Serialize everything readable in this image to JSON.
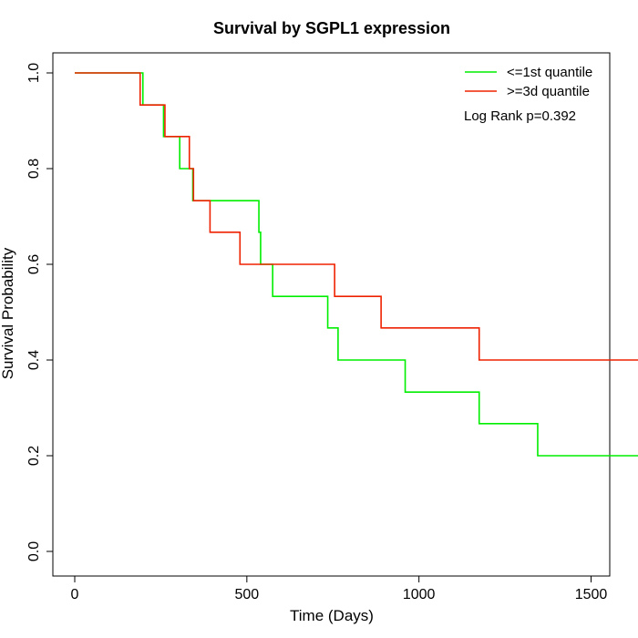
{
  "chart_data": {
    "type": "line",
    "step": true,
    "title": "Survival by SGPL1 expression",
    "xlabel": "Time (Days)",
    "ylabel": "Survival Probability",
    "xlim": [
      0,
      1720
    ],
    "ylim": [
      0,
      1.0
    ],
    "x_ticks": [
      0,
      500,
      1000,
      1500
    ],
    "y_ticks": [
      0.0,
      0.2,
      0.4,
      0.6,
      0.8,
      1.0
    ],
    "x_tick_labels": [
      "0",
      "500",
      "1000",
      "1500"
    ],
    "y_tick_labels": [
      "0.0",
      "0.2",
      "0.4",
      "0.6",
      "0.8",
      "1.0"
    ],
    "grid": false,
    "legend_position": "top-right",
    "annotation": "Log Rank p=0.392",
    "series": [
      {
        "name": "<=1st quantile",
        "color": "#00ee00",
        "x": [
          0,
          198,
          258,
          305,
          343,
          535,
          540,
          575,
          735,
          765,
          960,
          1175,
          1345,
          1640
        ],
        "y": [
          1.0,
          0.933,
          0.867,
          0.8,
          0.733,
          0.667,
          0.6,
          0.533,
          0.467,
          0.4,
          0.333,
          0.267,
          0.2,
          0.2
        ]
      },
      {
        "name": ">=3d quantile",
        "color": "#ee2200",
        "x": [
          0,
          190,
          262,
          333,
          345,
          393,
          480,
          755,
          890,
          1175,
          1720
        ],
        "y": [
          1.0,
          0.933,
          0.867,
          0.8,
          0.733,
          0.667,
          0.6,
          0.533,
          0.467,
          0.4,
          0.4
        ]
      }
    ]
  }
}
